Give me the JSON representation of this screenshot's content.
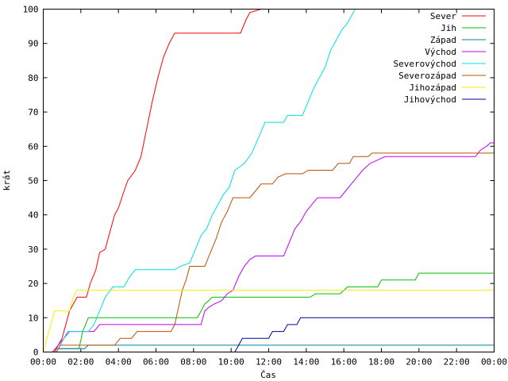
{
  "chart_data": {
    "type": "line",
    "title": "",
    "xlabel": "Čas",
    "ylabel": "krát",
    "xlim": [
      0,
      24
    ],
    "ylim": [
      0,
      100
    ],
    "grid": false,
    "legend_position": "top-right",
    "x_ticks": [
      {
        "value": 0,
        "label": "00:00"
      },
      {
        "value": 2,
        "label": "02:00"
      },
      {
        "value": 4,
        "label": "04:00"
      },
      {
        "value": 6,
        "label": "06:00"
      },
      {
        "value": 8,
        "label": "08:00"
      },
      {
        "value": 10,
        "label": "10:00"
      },
      {
        "value": 12,
        "label": "12:00"
      },
      {
        "value": 14,
        "label": "14:00"
      },
      {
        "value": 16,
        "label": "16:00"
      },
      {
        "value": 18,
        "label": "18:00"
      },
      {
        "value": 20,
        "label": "20:00"
      },
      {
        "value": 22,
        "label": "22:00"
      },
      {
        "value": 24,
        "label": "00:00"
      }
    ],
    "y_ticks": [
      0,
      10,
      20,
      30,
      40,
      50,
      60,
      70,
      80,
      90,
      100
    ],
    "series": [
      {
        "name": "Sever",
        "color": "#ff0000",
        "points": [
          [
            0,
            0
          ],
          [
            0.5,
            0
          ],
          [
            0.8,
            2
          ],
          [
            1.0,
            4
          ],
          [
            1.2,
            8
          ],
          [
            1.4,
            12
          ],
          [
            1.6,
            14
          ],
          [
            1.8,
            16
          ],
          [
            2.3,
            16
          ],
          [
            2.5,
            20
          ],
          [
            2.8,
            24
          ],
          [
            3.0,
            29
          ],
          [
            3.3,
            30
          ],
          [
            3.5,
            34
          ],
          [
            3.8,
            40
          ],
          [
            4.0,
            42
          ],
          [
            4.3,
            47
          ],
          [
            4.5,
            50
          ],
          [
            4.9,
            53
          ],
          [
            5.2,
            57
          ],
          [
            5.5,
            65
          ],
          [
            5.8,
            73
          ],
          [
            6.1,
            80
          ],
          [
            6.4,
            86
          ],
          [
            6.7,
            90
          ],
          [
            7.0,
            93
          ],
          [
            10.5,
            93
          ],
          [
            10.8,
            97
          ],
          [
            11.0,
            99
          ],
          [
            11.6,
            100
          ],
          [
            24,
            100
          ]
        ]
      },
      {
        "name": "Jih",
        "color": "#00c000",
        "points": [
          [
            0,
            0
          ],
          [
            0.6,
            0
          ],
          [
            0.7,
            1
          ],
          [
            1.9,
            1
          ],
          [
            2.1,
            6
          ],
          [
            2.4,
            10
          ],
          [
            8.2,
            10
          ],
          [
            8.4,
            12
          ],
          [
            8.6,
            14
          ],
          [
            8.8,
            15
          ],
          [
            9.0,
            16
          ],
          [
            12.2,
            16
          ],
          [
            14.2,
            16
          ],
          [
            14.5,
            17
          ],
          [
            15.8,
            17
          ],
          [
            16.0,
            18
          ],
          [
            16.2,
            19
          ],
          [
            17.8,
            19
          ],
          [
            18.0,
            21
          ],
          [
            18.2,
            21
          ],
          [
            19.8,
            21
          ],
          [
            20.0,
            23
          ],
          [
            24,
            23
          ]
        ]
      },
      {
        "name": "Západ",
        "color": "#0080a0",
        "points": [
          [
            0,
            0
          ],
          [
            0.7,
            0
          ],
          [
            0.8,
            1
          ],
          [
            2.2,
            1
          ],
          [
            2.4,
            2
          ],
          [
            24,
            2
          ]
        ]
      },
      {
        "name": "Východ",
        "color": "#c000ff",
        "points": [
          [
            0,
            0
          ],
          [
            0.6,
            0
          ],
          [
            0.8,
            2
          ],
          [
            1.1,
            4
          ],
          [
            1.4,
            6
          ],
          [
            2.7,
            6
          ],
          [
            3.0,
            8
          ],
          [
            8.4,
            8
          ],
          [
            8.6,
            12
          ],
          [
            8.8,
            13
          ],
          [
            9.1,
            14
          ],
          [
            9.5,
            15
          ],
          [
            9.8,
            17
          ],
          [
            10.1,
            18
          ],
          [
            10.4,
            22
          ],
          [
            10.7,
            25
          ],
          [
            11.0,
            27
          ],
          [
            11.3,
            28
          ],
          [
            12.8,
            28
          ],
          [
            13.1,
            32
          ],
          [
            13.4,
            36
          ],
          [
            13.7,
            38
          ],
          [
            14.0,
            41
          ],
          [
            14.3,
            43
          ],
          [
            14.6,
            45
          ],
          [
            15.8,
            45
          ],
          [
            16.1,
            47
          ],
          [
            16.4,
            49
          ],
          [
            16.7,
            51
          ],
          [
            17.0,
            53
          ],
          [
            17.4,
            55
          ],
          [
            17.8,
            56
          ],
          [
            18.2,
            57
          ],
          [
            23.0,
            57
          ],
          [
            23.3,
            59
          ],
          [
            23.6,
            60
          ],
          [
            23.8,
            61
          ],
          [
            24,
            61
          ]
        ]
      },
      {
        "name": "Severovýchod",
        "color": "#00e0e0",
        "points": [
          [
            0,
            0
          ],
          [
            0.7,
            0
          ],
          [
            0.9,
            2
          ],
          [
            1.1,
            4
          ],
          [
            1.3,
            6
          ],
          [
            2.4,
            6
          ],
          [
            2.7,
            8
          ],
          [
            3.0,
            12
          ],
          [
            3.3,
            16
          ],
          [
            3.7,
            19
          ],
          [
            4.3,
            19
          ],
          [
            4.6,
            22
          ],
          [
            4.9,
            24
          ],
          [
            7.0,
            24
          ],
          [
            7.3,
            25
          ],
          [
            7.8,
            26
          ],
          [
            8.1,
            30
          ],
          [
            8.4,
            34
          ],
          [
            8.7,
            36
          ],
          [
            9.0,
            40
          ],
          [
            9.3,
            43
          ],
          [
            9.6,
            46
          ],
          [
            9.9,
            48
          ],
          [
            10.2,
            53
          ],
          [
            10.7,
            55
          ],
          [
            11.1,
            58
          ],
          [
            11.5,
            63
          ],
          [
            11.8,
            67
          ],
          [
            12.8,
            67
          ],
          [
            13.0,
            69
          ],
          [
            13.8,
            69
          ],
          [
            14.1,
            73
          ],
          [
            14.4,
            77
          ],
          [
            14.7,
            80
          ],
          [
            15.0,
            83
          ],
          [
            15.3,
            88
          ],
          [
            15.6,
            91
          ],
          [
            15.9,
            94
          ],
          [
            16.2,
            96
          ],
          [
            16.6,
            100
          ],
          [
            24,
            100
          ]
        ]
      },
      {
        "name": "Severozápad",
        "color": "#c05000",
        "points": [
          [
            0,
            0
          ],
          [
            0.7,
            0
          ],
          [
            0.9,
            2
          ],
          [
            3.8,
            2
          ],
          [
            4.1,
            4
          ],
          [
            4.7,
            4
          ],
          [
            5.0,
            6
          ],
          [
            6.8,
            6
          ],
          [
            7.0,
            8
          ],
          [
            7.2,
            13
          ],
          [
            7.4,
            18
          ],
          [
            7.6,
            21
          ],
          [
            7.8,
            25
          ],
          [
            8.6,
            25
          ],
          [
            8.9,
            29
          ],
          [
            9.2,
            33
          ],
          [
            9.5,
            38
          ],
          [
            9.8,
            41
          ],
          [
            10.1,
            45
          ],
          [
            11.0,
            45
          ],
          [
            11.3,
            47
          ],
          [
            11.6,
            49
          ],
          [
            12.2,
            49
          ],
          [
            12.5,
            51
          ],
          [
            12.9,
            52
          ],
          [
            13.8,
            52
          ],
          [
            14.1,
            53
          ],
          [
            15.4,
            53
          ],
          [
            15.7,
            55
          ],
          [
            16.3,
            55
          ],
          [
            16.5,
            57
          ],
          [
            17.3,
            57
          ],
          [
            17.5,
            58
          ],
          [
            24,
            58
          ]
        ]
      },
      {
        "name": "Jihozápad",
        "color": "#f0f000",
        "points": [
          [
            0,
            0
          ],
          [
            0.2,
            4
          ],
          [
            0.4,
            8
          ],
          [
            0.6,
            12
          ],
          [
            1.4,
            12
          ],
          [
            1.6,
            16
          ],
          [
            1.8,
            18
          ],
          [
            24,
            18
          ]
        ]
      },
      {
        "name": "Jihovýchod",
        "color": "#0000a0",
        "points": [
          [
            0,
            0
          ],
          [
            10.2,
            0
          ],
          [
            10.4,
            2
          ],
          [
            10.6,
            4
          ],
          [
            12.0,
            4
          ],
          [
            12.2,
            6
          ],
          [
            12.8,
            6
          ],
          [
            13.0,
            8
          ],
          [
            13.5,
            8
          ],
          [
            13.7,
            10
          ],
          [
            24,
            10
          ]
        ]
      }
    ]
  }
}
